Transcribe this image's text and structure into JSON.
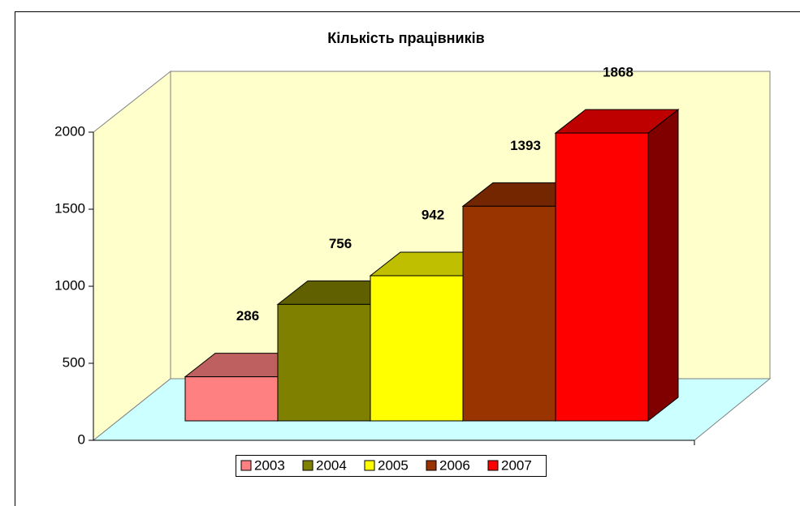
{
  "chart_data": {
    "type": "bar3d",
    "title": "Кількість працівників",
    "series": [
      {
        "name": "2003",
        "color": "#ff8080",
        "values": [
          286
        ]
      },
      {
        "name": "2004",
        "color": "#808000",
        "values": [
          756
        ]
      },
      {
        "name": "2005",
        "color": "#ffff00",
        "values": [
          942
        ]
      },
      {
        "name": "2006",
        "color": "#993300",
        "values": [
          1393
        ]
      },
      {
        "name": "2007",
        "color": "#ff0000",
        "values": [
          1868
        ]
      }
    ],
    "ylim": [
      0,
      2000
    ],
    "yticks": [
      0,
      500,
      1000,
      1500,
      2000
    ],
    "legend": "bottom"
  }
}
